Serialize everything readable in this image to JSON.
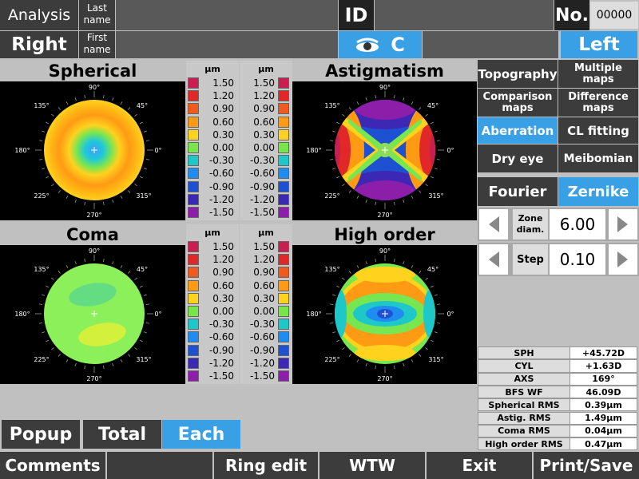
{
  "header": {
    "analysis_label": "Analysis",
    "last_name_label": "Last name",
    "first_name_label": "First name",
    "id_label": "ID",
    "no_label": "No.",
    "no_value": "00000",
    "right_label": "Right",
    "left_label": "Left",
    "eye_mode": "C"
  },
  "maps": {
    "spherical_title": "Spherical",
    "astigmatism_title": "Astigmatism",
    "coma_title": "Coma",
    "high_order_title": "High order",
    "angles": {
      "a90": "90°",
      "a135": "135°",
      "a45": "45°",
      "a180": "180°",
      "a0": "0°",
      "a225": "225°",
      "a315": "315°",
      "a270": "270°"
    }
  },
  "scale": {
    "unit": "µm",
    "values": [
      "1.50",
      "1.20",
      "0.90",
      "0.60",
      "0.30",
      "0.00",
      "-0.30",
      "-0.60",
      "-0.90",
      "-1.20",
      "-1.50"
    ],
    "colors": [
      "#c81e50",
      "#e02828",
      "#f05a1e",
      "#ff9a14",
      "#ffd21e",
      "#78e64b",
      "#1ec8c8",
      "#1e8cf0",
      "#1e50d2",
      "#3c28b4",
      "#8c1eaa"
    ]
  },
  "menu": {
    "topography": "Topography",
    "multiple_maps": "Multiple maps",
    "comparison_maps": "Comparison maps",
    "difference_maps": "Difference maps",
    "aberration": "Aberration",
    "cl_fitting": "CL fitting",
    "dry_eye": "Dry eye",
    "meibomian": "Meibomian",
    "fourier": "Fourier",
    "zernike": "Zernike"
  },
  "controls": {
    "zone_label": "Zone diam.",
    "zone_value": "6.00",
    "step_label": "Step",
    "step_value": "0.10"
  },
  "stats": [
    {
      "label": "SPH",
      "value": "+45.72D"
    },
    {
      "label": "CYL",
      "value": "+1.63D"
    },
    {
      "label": "AXS",
      "value": "169°"
    },
    {
      "label": "BFS WF",
      "value": "46.09D"
    },
    {
      "label": "Spherical RMS",
      "value": "0.39µm"
    },
    {
      "label": "Astig. RMS",
      "value": "1.49µm"
    },
    {
      "label": "Coma RMS",
      "value": "0.04µm"
    },
    {
      "label": "High order RMS",
      "value": "0.47µm"
    }
  ],
  "bottom": {
    "popup": "Popup",
    "total": "Total",
    "each": "Each",
    "comments": "Comments",
    "ring_edit": "Ring edit",
    "wtw": "WTW",
    "exit": "Exit",
    "print_save": "Print/Save"
  }
}
